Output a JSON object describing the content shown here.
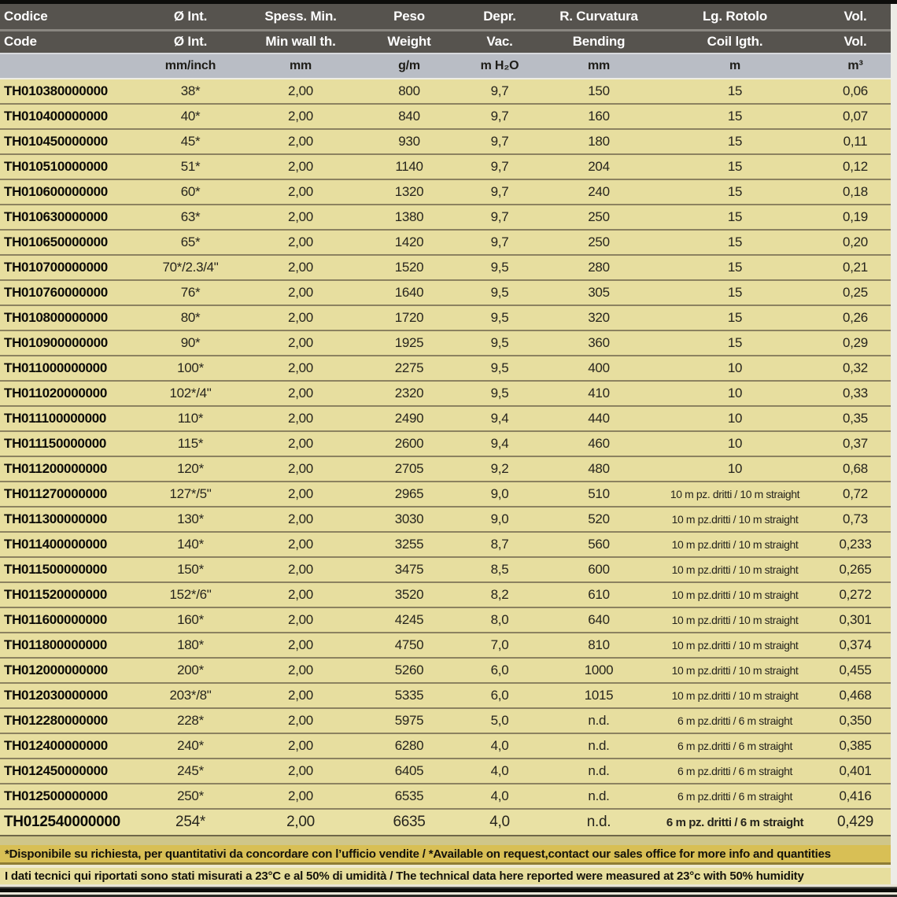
{
  "colors": {
    "header_bg": "#56534e",
    "header_text": "#ffffff",
    "units_bg": "#b9bdc5",
    "row_bg": "#e7de9f",
    "row_separator": "#8c8260",
    "note1_bg": "#d8bf55",
    "note2_bg": "#e7de9d",
    "top_bottom_bar": "#0d0d0b"
  },
  "table": {
    "header": {
      "row1": [
        "Codice",
        "Ø Int.",
        "Spess. Min.",
        "Peso",
        "Depr.",
        "R. Curvatura",
        "Lg. Rotolo",
        "Vol."
      ],
      "row2": [
        "Code",
        "Ø Int.",
        "Min wall th.",
        "Weight",
        "Vac.",
        "Bending",
        "Coil lgth.",
        "Vol."
      ],
      "units": [
        "",
        "mm/inch",
        "mm",
        "g/m",
        "m H₂O",
        "mm",
        "m",
        "m³"
      ]
    },
    "column_keys": [
      "code",
      "diameter",
      "min_wall",
      "weight",
      "vacuum",
      "bending",
      "coil_length",
      "volume"
    ],
    "rows": [
      {
        "code": "TH010380000000",
        "diameter": "38*",
        "min_wall": "2,00",
        "weight": "800",
        "vacuum": "9,7",
        "bending": "150",
        "coil_length": "15",
        "volume": "0,06"
      },
      {
        "code": "TH010400000000",
        "diameter": "40*",
        "min_wall": "2,00",
        "weight": "840",
        "vacuum": "9,7",
        "bending": "160",
        "coil_length": "15",
        "volume": "0,07"
      },
      {
        "code": "TH010450000000",
        "diameter": "45*",
        "min_wall": "2,00",
        "weight": "930",
        "vacuum": "9,7",
        "bending": "180",
        "coil_length": "15",
        "volume": "0,11"
      },
      {
        "code": "TH010510000000",
        "diameter": "51*",
        "min_wall": "2,00",
        "weight": "1140",
        "vacuum": "9,7",
        "bending": "204",
        "coil_length": "15",
        "volume": "0,12"
      },
      {
        "code": "TH010600000000",
        "diameter": "60*",
        "min_wall": "2,00",
        "weight": "1320",
        "vacuum": "9,7",
        "bending": "240",
        "coil_length": "15",
        "volume": "0,18"
      },
      {
        "code": "TH010630000000",
        "diameter": "63*",
        "min_wall": "2,00",
        "weight": "1380",
        "vacuum": "9,7",
        "bending": "250",
        "coil_length": "15",
        "volume": "0,19"
      },
      {
        "code": "TH010650000000",
        "diameter": "65*",
        "min_wall": "2,00",
        "weight": "1420",
        "vacuum": "9,7",
        "bending": "250",
        "coil_length": "15",
        "volume": "0,20"
      },
      {
        "code": "TH010700000000",
        "diameter": "70*/2.3/4\"",
        "min_wall": "2,00",
        "weight": "1520",
        "vacuum": "9,5",
        "bending": "280",
        "coil_length": "15",
        "volume": "0,21"
      },
      {
        "code": "TH010760000000",
        "diameter": "76*",
        "min_wall": "2,00",
        "weight": "1640",
        "vacuum": "9,5",
        "bending": "305",
        "coil_length": "15",
        "volume": "0,25"
      },
      {
        "code": "TH010800000000",
        "diameter": "80*",
        "min_wall": "2,00",
        "weight": "1720",
        "vacuum": "9,5",
        "bending": "320",
        "coil_length": "15",
        "volume": "0,26"
      },
      {
        "code": "TH010900000000",
        "diameter": "90*",
        "min_wall": "2,00",
        "weight": "1925",
        "vacuum": "9,5",
        "bending": "360",
        "coil_length": "15",
        "volume": "0,29"
      },
      {
        "code": "TH011000000000",
        "diameter": "100*",
        "min_wall": "2,00",
        "weight": "2275",
        "vacuum": "9,5",
        "bending": "400",
        "coil_length": "10",
        "volume": "0,32"
      },
      {
        "code": "TH011020000000",
        "diameter": "102*/4\"",
        "min_wall": "2,00",
        "weight": "2320",
        "vacuum": "9,5",
        "bending": "410",
        "coil_length": "10",
        "volume": "0,33"
      },
      {
        "code": "TH011100000000",
        "diameter": "110*",
        "min_wall": "2,00",
        "weight": "2490",
        "vacuum": "9,4",
        "bending": "440",
        "coil_length": "10",
        "volume": "0,35"
      },
      {
        "code": "TH011150000000",
        "diameter": "115*",
        "min_wall": "2,00",
        "weight": "2600",
        "vacuum": "9,4",
        "bending": "460",
        "coil_length": "10",
        "volume": "0,37"
      },
      {
        "code": "TH011200000000",
        "diameter": "120*",
        "min_wall": "2,00",
        "weight": "2705",
        "vacuum": "9,2",
        "bending": "480",
        "coil_length": "10",
        "volume": "0,68"
      },
      {
        "code": "TH011270000000",
        "diameter": "127*/5\"",
        "min_wall": "2,00",
        "weight": "2965",
        "vacuum": "9,0",
        "bending": "510",
        "coil_length": "10 m pz. dritti / 10 m straight",
        "volume": "0,72"
      },
      {
        "code": "TH011300000000",
        "diameter": "130*",
        "min_wall": "2,00",
        "weight": "3030",
        "vacuum": "9,0",
        "bending": "520",
        "coil_length": "10 m pz.dritti / 10 m straight",
        "volume": "0,73"
      },
      {
        "code": "TH011400000000",
        "diameter": "140*",
        "min_wall": "2,00",
        "weight": "3255",
        "vacuum": "8,7",
        "bending": "560",
        "coil_length": "10 m pz.dritti / 10 m straight",
        "volume": "0,233"
      },
      {
        "code": "TH011500000000",
        "diameter": "150*",
        "min_wall": "2,00",
        "weight": "3475",
        "vacuum": "8,5",
        "bending": "600",
        "coil_length": "10 m pz.dritti / 10 m straight",
        "volume": "0,265"
      },
      {
        "code": "TH011520000000",
        "diameter": "152*/6\"",
        "min_wall": "2,00",
        "weight": "3520",
        "vacuum": "8,2",
        "bending": "610",
        "coil_length": "10 m pz.dritti / 10 m straight",
        "volume": "0,272"
      },
      {
        "code": "TH011600000000",
        "diameter": "160*",
        "min_wall": "2,00",
        "weight": "4245",
        "vacuum": "8,0",
        "bending": "640",
        "coil_length": "10 m pz.dritti / 10 m straight",
        "volume": "0,301"
      },
      {
        "code": "TH011800000000",
        "diameter": "180*",
        "min_wall": "2,00",
        "weight": "4750",
        "vacuum": "7,0",
        "bending": "810",
        "coil_length": "10 m pz.dritti / 10 m straight",
        "volume": "0,374"
      },
      {
        "code": "TH012000000000",
        "diameter": "200*",
        "min_wall": "2,00",
        "weight": "5260",
        "vacuum": "6,0",
        "bending": "1000",
        "coil_length": "10 m pz.dritti / 10 m straight",
        "volume": "0,455"
      },
      {
        "code": "TH012030000000",
        "diameter": "203*/8\"",
        "min_wall": "2,00",
        "weight": "5335",
        "vacuum": "6,0",
        "bending": "1015",
        "coil_length": "10 m pz.dritti / 10 m straight",
        "volume": "0,468"
      },
      {
        "code": "TH012280000000",
        "diameter": "228*",
        "min_wall": "2,00",
        "weight": "5975",
        "vacuum": "5,0",
        "bending": "n.d.",
        "coil_length": "6 m pz.dritti / 6 m straight",
        "volume": "0,350"
      },
      {
        "code": "TH012400000000",
        "diameter": "240*",
        "min_wall": "2,00",
        "weight": "6280",
        "vacuum": "4,0",
        "bending": "n.d.",
        "coil_length": "6 m pz.dritti / 6 m straight",
        "volume": "0,385"
      },
      {
        "code": "TH012450000000",
        "diameter": "245*",
        "min_wall": "2,00",
        "weight": "6405",
        "vacuum": "4,0",
        "bending": "n.d.",
        "coil_length": "6 m pz.dritti / 6 m straight",
        "volume": "0,401"
      },
      {
        "code": "TH012500000000",
        "diameter": "250*",
        "min_wall": "2,00",
        "weight": "6535",
        "vacuum": "4,0",
        "bending": "n.d.",
        "coil_length": "6 m pz.dritti / 6 m straight",
        "volume": "0,416"
      },
      {
        "code": "TH012540000000",
        "diameter": "254*",
        "min_wall": "2,00",
        "weight": "6635",
        "vacuum": "4,0",
        "bending": "n.d.",
        "coil_length": "6 m pz. dritti / 6 m straight",
        "volume": "0,429"
      }
    ]
  },
  "footer": {
    "note1": "*Disponibile su richiesta, per quantitativi da concordare con l’ufficio vendite / *Available on request,contact our sales office for more info and quantities",
    "note2": "I dati tecnici qui riportati sono stati misurati a 23°C e al 50% di umidità / The technical data here reported were measured at 23°c with 50% humidity"
  }
}
